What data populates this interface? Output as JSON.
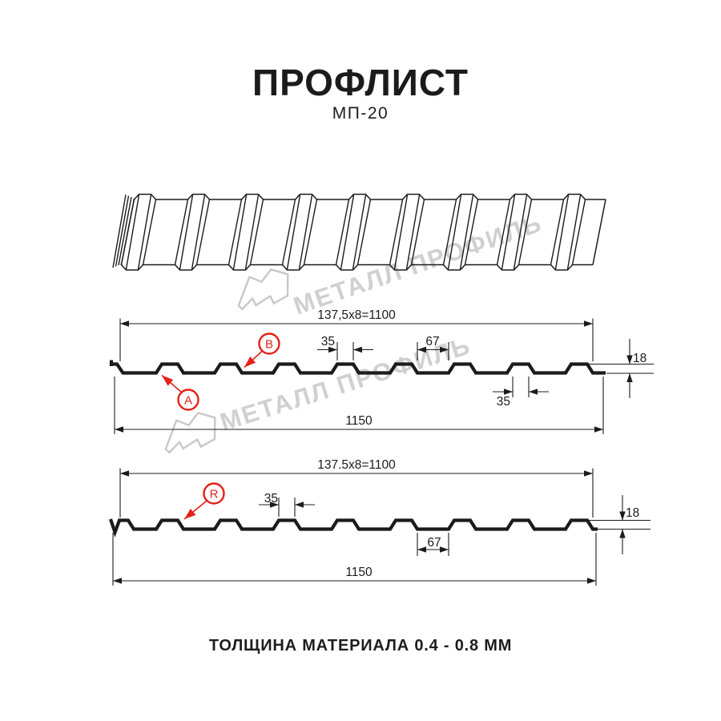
{
  "page": {
    "title": "ПРОФЛИСТ",
    "subtitle": "МП-20",
    "footer_note": "ТОЛЩИНА МАТЕРИАЛА 0.4 - 0.8 ММ"
  },
  "watermark": {
    "brand": "МЕТАЛЛ ПРОФИЛЬ"
  },
  "colors": {
    "line": "#1b1b1b",
    "red": "#e32118",
    "watermark_text": "#d0d0d0",
    "watermark_logo": "#c8c8c8"
  },
  "perspective_view": {
    "rib_count": 9
  },
  "sections": {
    "top": {
      "coverage": "137,5x8=1100",
      "rib_top": "35",
      "flat": "67",
      "height": "18",
      "rib_bottom": "35",
      "overall": "1150",
      "labels": {
        "a": "A",
        "b": "B"
      }
    },
    "bottom": {
      "coverage": "137.5x8=1100",
      "rib_top": "35",
      "flat": "67",
      "height": "18",
      "overall": "1150",
      "labels": {
        "r": "R"
      }
    }
  }
}
